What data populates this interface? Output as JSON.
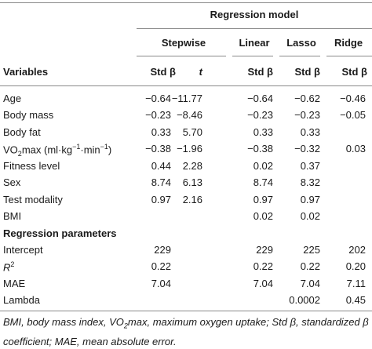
{
  "header": {
    "group_title": "Regression model",
    "variables_label": "Variables",
    "models": [
      "Stepwise",
      "Linear",
      "Lasso",
      "Ridge"
    ],
    "subheaders": [
      "Std β",
      "t",
      "Std β",
      "Std β",
      "Std β"
    ]
  },
  "rows": [
    {
      "label": "Age",
      "v": [
        "−0.64",
        "−11.77",
        "−0.64",
        "−0.62",
        "−0.46"
      ]
    },
    {
      "label": "Body mass",
      "v": [
        "−0.23",
        "−8.46",
        "−0.23",
        "−0.23",
        "−0.05"
      ]
    },
    {
      "label": "Body fat",
      "v": [
        "0.33",
        "5.70",
        "0.33",
        "0.33",
        ""
      ]
    },
    {
      "label_parts": [
        "VO",
        "2",
        "max (ml·kg",
        "−1",
        "·min",
        "−1",
        ")"
      ],
      "v": [
        "−0.38",
        "−1.96",
        "−0.38",
        "−0.32",
        "0.03"
      ]
    },
    {
      "label": "Fitness level",
      "v": [
        "0.44",
        "2.28",
        "0.02",
        "0.37",
        ""
      ]
    },
    {
      "label": "Sex",
      "v": [
        "8.74",
        "6.13",
        "8.74",
        "8.32",
        ""
      ]
    },
    {
      "label": "Test modality",
      "v": [
        "0.97",
        "2.16",
        "0.97",
        "0.97",
        ""
      ]
    },
    {
      "label": "BMI",
      "v": [
        "",
        "",
        "0.02",
        "0.02",
        ""
      ]
    }
  ],
  "section2_title": "Regression parameters",
  "params": [
    {
      "label": "Intercept",
      "v": [
        "229",
        "",
        "229",
        "225",
        "202"
      ]
    },
    {
      "label_parts": [
        "R",
        "2"
      ],
      "v": [
        "0.22",
        "",
        "0.22",
        "0.22",
        "0.20"
      ]
    },
    {
      "label": "MAE",
      "v": [
        "7.04",
        "",
        "7.04",
        "7.04",
        "7.11"
      ]
    },
    {
      "label": "Lambda",
      "v": [
        "",
        "",
        "",
        "0.0002",
        "0.45"
      ]
    }
  ],
  "footnote": {
    "p1": "BMI, body mass index, VO",
    "sub": "2",
    "p2": "max, maximum oxygen uptake; Std β, standardized β coefficient; MAE, mean absolute error."
  }
}
